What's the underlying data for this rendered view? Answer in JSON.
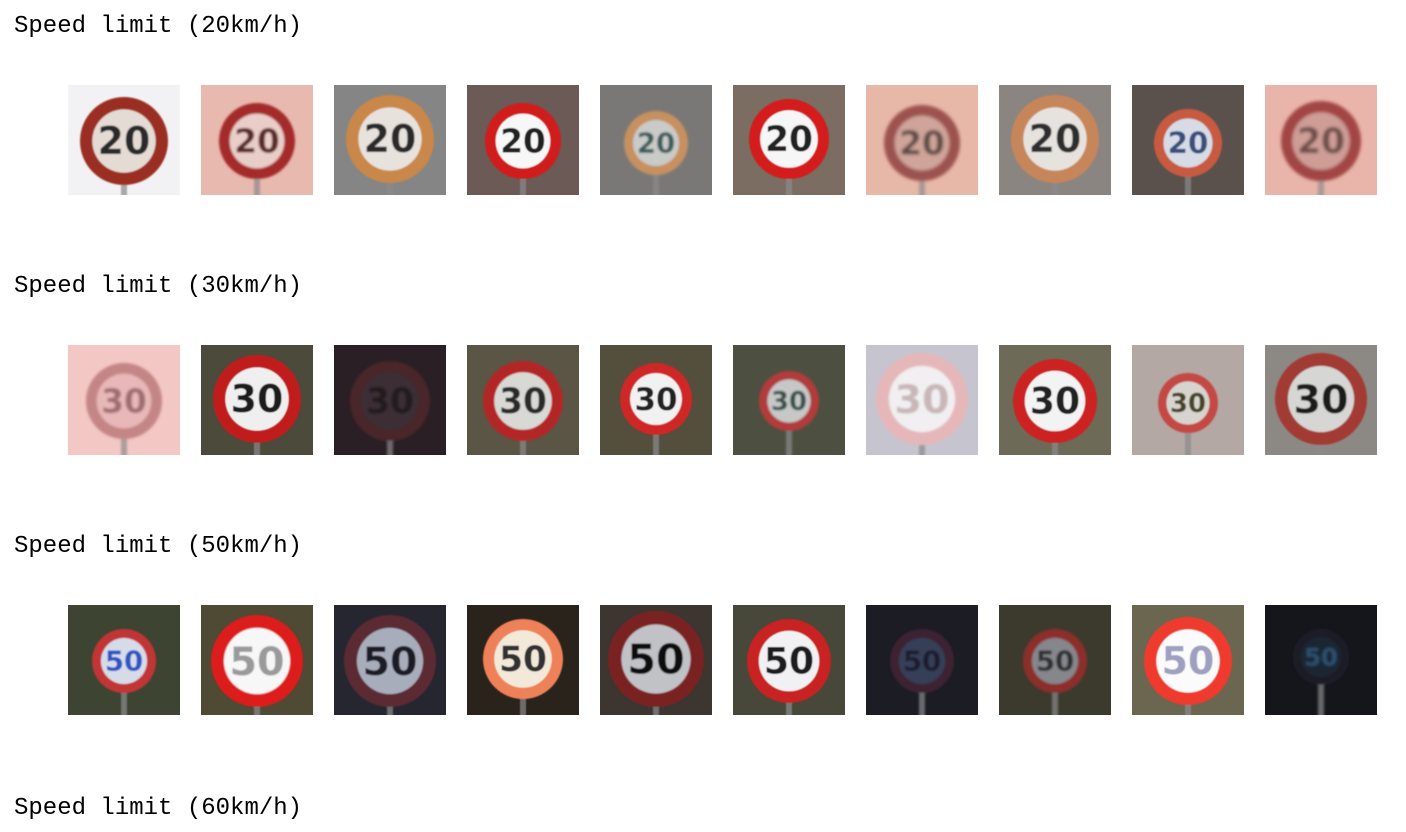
{
  "sections": [
    {
      "title": "Speed limit (20km/h)",
      "images": [
        {
          "label": "20",
          "bg": "#f2f2f4",
          "ring": "#9b2e22",
          "face": "#e4dcd4",
          "text": "#2a2a2a",
          "blur": 0.9,
          "r": 44,
          "cy": 56
        },
        {
          "label": "20",
          "bg": "#e8b9ae",
          "ring": "#a52a2a",
          "face": "#e9cdc7",
          "text": "#5a2a2a",
          "blur": 1.1,
          "r": 38,
          "cy": 56
        },
        {
          "label": "20",
          "bg": "#858585",
          "ring": "#c9874a",
          "face": "#e7e2dc",
          "text": "#2b2b2b",
          "blur": 0.7,
          "r": 44,
          "cy": 54
        },
        {
          "label": "20",
          "bg": "#6b5a55",
          "ring": "#d11d1d",
          "face": "#f7f7f7",
          "text": "#222222",
          "blur": 0.6,
          "r": 38,
          "cy": 56
        },
        {
          "label": "20",
          "bg": "#7a7876",
          "ring": "#c7905f",
          "face": "#c9cbc8",
          "text": "#3e5a5a",
          "blur": 1.0,
          "r": 32,
          "cy": 58
        },
        {
          "label": "20",
          "bg": "#7b6d62",
          "ring": "#d41a1a",
          "face": "#f6f6f6",
          "text": "#222222",
          "blur": 0.6,
          "r": 40,
          "cy": 54
        },
        {
          "label": "20",
          "bg": "#e7b8a8",
          "ring": "#9c5250",
          "face": "#cfa49a",
          "text": "#5e4a44",
          "blur": 1.6,
          "r": 38,
          "cy": 58
        },
        {
          "label": "20",
          "bg": "#8a8581",
          "ring": "#c7855a",
          "face": "#e6e3de",
          "text": "#2d2d2d",
          "blur": 0.7,
          "r": 44,
          "cy": 54
        },
        {
          "label": "20",
          "bg": "#5a514c",
          "ring": "#c85a40",
          "face": "#d6dbe6",
          "text": "#3a4f7a",
          "blur": 0.9,
          "r": 34,
          "cy": 58
        },
        {
          "label": "20",
          "bg": "#e9b5aa",
          "ring": "#a24444",
          "face": "#cd9d96",
          "text": "#6e4d49",
          "blur": 1.7,
          "r": 40,
          "cy": 56
        }
      ]
    },
    {
      "title": "Speed limit (30km/h)",
      "images": [
        {
          "label": "30",
          "bg": "#f2c7c4",
          "ring": "#c48585",
          "face": "#e7b8b7",
          "text": "#a06c70",
          "blur": 1.3,
          "r": 38,
          "cy": 56
        },
        {
          "label": "30",
          "bg": "#4c4a3a",
          "ring": "#c11f1f",
          "face": "#efefef",
          "text": "#1f1f1f",
          "blur": 0.6,
          "r": 44,
          "cy": 54
        },
        {
          "label": "30",
          "bg": "#2a1f24",
          "ring": "#4a262b",
          "face": "#3a2e34",
          "text": "#241b1f",
          "blur": 1.2,
          "r": 40,
          "cy": 56
        },
        {
          "label": "30",
          "bg": "#5a5545",
          "ring": "#b32828",
          "face": "#d8d8d4",
          "text": "#2b2b2b",
          "blur": 0.8,
          "r": 40,
          "cy": 56
        },
        {
          "label": "30",
          "bg": "#544f3d",
          "ring": "#cf2525",
          "face": "#f1f1f1",
          "text": "#202020",
          "blur": 0.6,
          "r": 36,
          "cy": 54
        },
        {
          "label": "30",
          "bg": "#4d5040",
          "ring": "#b23a3a",
          "face": "#c6c8c8",
          "text": "#334d44",
          "blur": 1.0,
          "r": 30,
          "cy": 56
        },
        {
          "label": "30",
          "bg": "#c6c4cf",
          "ring": "#e5b7b9",
          "face": "#f1eff1",
          "text": "#c8b7b9",
          "blur": 1.1,
          "r": 46,
          "cy": 54
        },
        {
          "label": "30",
          "bg": "#6e6a58",
          "ring": "#cd2020",
          "face": "#f3f3f3",
          "text": "#222222",
          "blur": 0.6,
          "r": 42,
          "cy": 56
        },
        {
          "label": "30",
          "bg": "#b3a8a3",
          "ring": "#c44a45",
          "face": "#d7d3cf",
          "text": "#444422",
          "blur": 0.9,
          "r": 30,
          "cy": 58
        },
        {
          "label": "30",
          "bg": "#8c8985",
          "ring": "#a33a34",
          "face": "#d6d6d4",
          "text": "#1e1e1e",
          "blur": 0.8,
          "r": 46,
          "cy": 54
        }
      ]
    },
    {
      "title": "Speed limit (50km/h)",
      "images": [
        {
          "label": "50",
          "bg": "#3d4432",
          "ring": "#c13535",
          "face": "#d6dbe8",
          "text": "#2e54c4",
          "blur": 0.8,
          "r": 32,
          "cy": 56
        },
        {
          "label": "50",
          "bg": "#4e4a34",
          "ring": "#dd1a1a",
          "face": "#f7f7f7",
          "text": "#9a9a9a",
          "blur": 0.7,
          "r": 46,
          "cy": 56
        },
        {
          "label": "50",
          "bg": "#252630",
          "ring": "#5c2a32",
          "face": "#a8adbb",
          "text": "#1e1f26",
          "blur": 0.8,
          "r": 46,
          "cy": 56
        },
        {
          "label": "50",
          "bg": "#2a231c",
          "ring": "#ef8158",
          "face": "#f2e9d9",
          "text": "#333333",
          "blur": 0.6,
          "r": 40,
          "cy": 54
        },
        {
          "label": "50",
          "bg": "#3c3530",
          "ring": "#7a2020",
          "face": "#c1c2c6",
          "text": "#111111",
          "blur": 0.8,
          "r": 48,
          "cy": 54
        },
        {
          "label": "50",
          "bg": "#47483a",
          "ring": "#c82323",
          "face": "#f1f1f3",
          "text": "#1c1c1c",
          "blur": 0.6,
          "r": 42,
          "cy": 56
        },
        {
          "label": "50",
          "bg": "#1b1c24",
          "ring": "#3c2230",
          "face": "#364159",
          "text": "#1c1f2e",
          "blur": 1.0,
          "r": 32,
          "cy": 56
        },
        {
          "label": "50",
          "bg": "#3c3a2d",
          "ring": "#8c2e2c",
          "face": "#85878d",
          "text": "#2e2e2e",
          "blur": 1.0,
          "r": 32,
          "cy": 56
        },
        {
          "label": "50",
          "bg": "#6b6650",
          "ring": "#ef3b2e",
          "face": "#fbfbfb",
          "text": "#9f9fbf",
          "blur": 0.6,
          "r": 44,
          "cy": 56
        },
        {
          "label": "50",
          "bg": "#14161c",
          "ring": "#1e1e28",
          "face": "#1c2532",
          "text": "#2c4f6e",
          "blur": 1.2,
          "r": 28,
          "cy": 52
        }
      ]
    },
    {
      "title": "Speed limit (60km/h)",
      "images": []
    }
  ]
}
